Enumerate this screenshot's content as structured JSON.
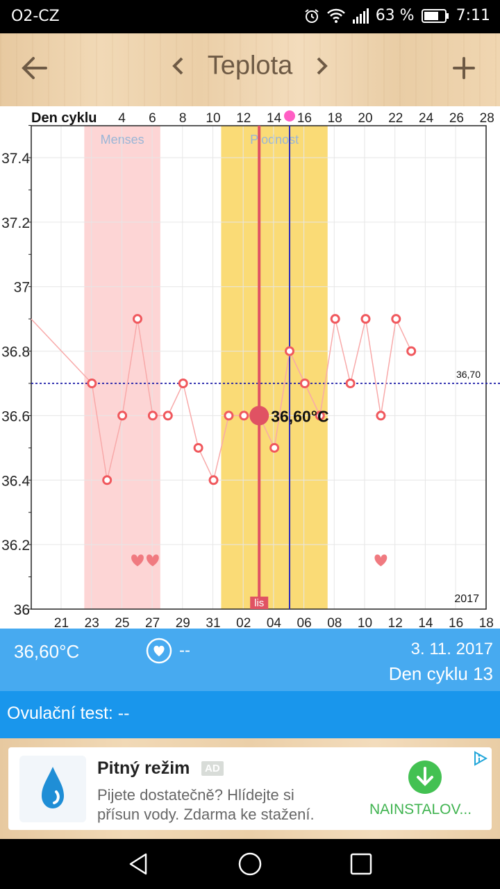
{
  "status_bar": {
    "carrier": "O2-CZ",
    "battery": "63 %",
    "time": "7:11"
  },
  "toolbar": {
    "title": "Teplota",
    "back_icon": "arrow-left-icon",
    "prev_icon": "chevron-left-icon",
    "next_icon": "chevron-right-icon",
    "add_icon": "plus-icon"
  },
  "chart_data": {
    "type": "line",
    "top_axis_label": "Den cyklu",
    "top_ticks": [
      "4",
      "6",
      "8",
      "10",
      "12",
      "14",
      "16",
      "18",
      "20",
      "22",
      "24",
      "26",
      "28"
    ],
    "bottom_ticks": [
      "21",
      "23",
      "25",
      "27",
      "29",
      "31",
      "02",
      "04",
      "06",
      "08",
      "10",
      "12",
      "14",
      "16",
      "18"
    ],
    "y_ticks": [
      "37.4",
      "37.2",
      "37",
      "36.8",
      "36.6",
      "36.4",
      "36.2",
      "36"
    ],
    "ylim": [
      36.0,
      37.5
    ],
    "year_label": "2017",
    "cover_line": {
      "value": 36.7,
      "label": "36,70"
    },
    "bands": [
      {
        "name": "Menses",
        "from_day": 1.5,
        "to_day": 6.5
      },
      {
        "name": "Plodnost",
        "from_day": 10.5,
        "to_day": 17.5
      }
    ],
    "selected": {
      "day": 13,
      "value": 36.6,
      "label": "36,60°C",
      "month_badge": "lis"
    },
    "marker_day": 15,
    "month_badge": "lis",
    "series": [
      {
        "points": [
          {
            "day": -2,
            "value": 36.9
          },
          {
            "day": 2,
            "value": 36.7
          },
          {
            "day": 3,
            "value": 36.4
          },
          {
            "day": 4,
            "value": 36.6
          },
          {
            "day": 5,
            "value": 36.9
          },
          {
            "day": 6,
            "value": 36.6
          },
          {
            "day": 7,
            "value": 36.6
          },
          {
            "day": 8,
            "value": 36.7
          },
          {
            "day": 9,
            "value": 36.5
          },
          {
            "day": 10,
            "value": 36.4
          },
          {
            "day": 11,
            "value": 36.6
          },
          {
            "day": 12,
            "value": 36.6
          },
          {
            "day": 13,
            "value": 36.6
          },
          {
            "day": 14,
            "value": 36.5
          },
          {
            "day": 15,
            "value": 36.8
          },
          {
            "day": 16,
            "value": 36.7
          },
          {
            "day": 17,
            "value": 36.6
          },
          {
            "day": 18,
            "value": 36.9
          },
          {
            "day": 19,
            "value": 36.7
          },
          {
            "day": 20,
            "value": 36.9
          },
          {
            "day": 21,
            "value": 36.6
          },
          {
            "day": 22,
            "value": 36.9
          },
          {
            "day": 23,
            "value": 36.8
          }
        ]
      }
    ],
    "hearts": [
      5,
      6,
      21
    ],
    "colors": {
      "menses": "#fdd5d5",
      "fertile": "#fadb76",
      "line": "#f8a9a9",
      "point": "#f0585d",
      "selected": "#e05263",
      "cover": "#1a1aa8",
      "marker": "#2b2bbb"
    }
  },
  "info": {
    "temperature": "36,60°C",
    "heart_icon": "heart-circle-icon",
    "heart_value": "--",
    "date": "3. 11. 2017",
    "cycle_day": "Den cyklu 13"
  },
  "ovulation": {
    "label": "Ovulační test: --"
  },
  "ad": {
    "title": "Pitný režim",
    "badge": "AD",
    "description_line1": "Pijete dostatečně? Hlídejte si",
    "description_line2": "přísun vody. Zdarma ke stažení.",
    "install_label": "NAINSTALOV...",
    "icon": "water-drop-icon",
    "download_icon": "download-icon",
    "adchoices_icon": "adchoices-icon"
  },
  "nav": {
    "back_icon": "nav-back-icon",
    "home_icon": "nav-home-icon",
    "recent_icon": "nav-recent-icon"
  }
}
